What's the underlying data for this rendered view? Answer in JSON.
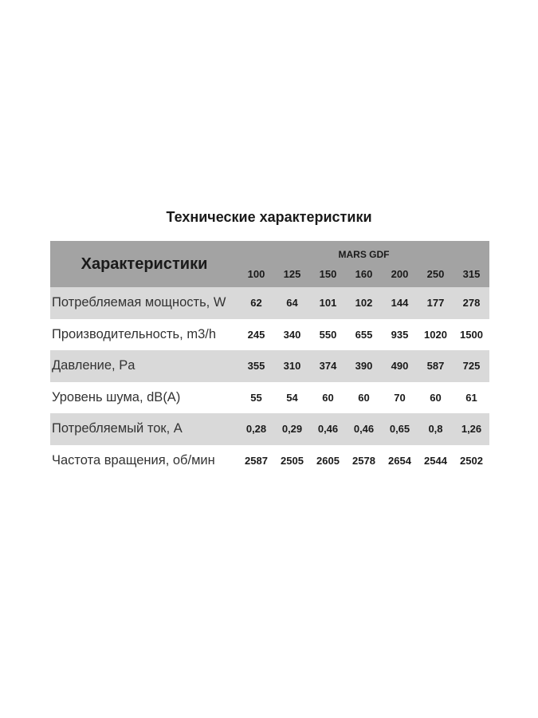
{
  "title": "Технические характеристики",
  "table": {
    "header_label": "Характеристики",
    "model": "MARS GDF",
    "sizes": [
      "100",
      "125",
      "150",
      "160",
      "200",
      "250",
      "315"
    ],
    "rows": [
      {
        "label": "Потребляемая мощность, W",
        "values": [
          "62",
          "64",
          "101",
          "102",
          "144",
          "177",
          "278"
        ]
      },
      {
        "label": "Производительность, m3/h",
        "values": [
          "245",
          "340",
          "550",
          "655",
          "935",
          "1020",
          "1500"
        ]
      },
      {
        "label": "Давление, Pa",
        "values": [
          "355",
          "310",
          "374",
          "390",
          "490",
          "587",
          "725"
        ]
      },
      {
        "label": "Уровень шума, dB(A)",
        "values": [
          "55",
          "54",
          "60",
          "60",
          "70",
          "60",
          "61"
        ]
      },
      {
        "label": "Потребляемый ток, A",
        "values": [
          "0,28",
          "0,29",
          "0,46",
          "0,46",
          "0,65",
          "0,8",
          "1,26"
        ]
      },
      {
        "label": "Частота вращения, об/мин",
        "values": [
          "2587",
          "2505",
          "2605",
          "2578",
          "2654",
          "2544",
          "2502"
        ]
      }
    ]
  },
  "colors": {
    "header_bg": "#a3a3a3",
    "stripe_bg": "#d9d9d9"
  }
}
